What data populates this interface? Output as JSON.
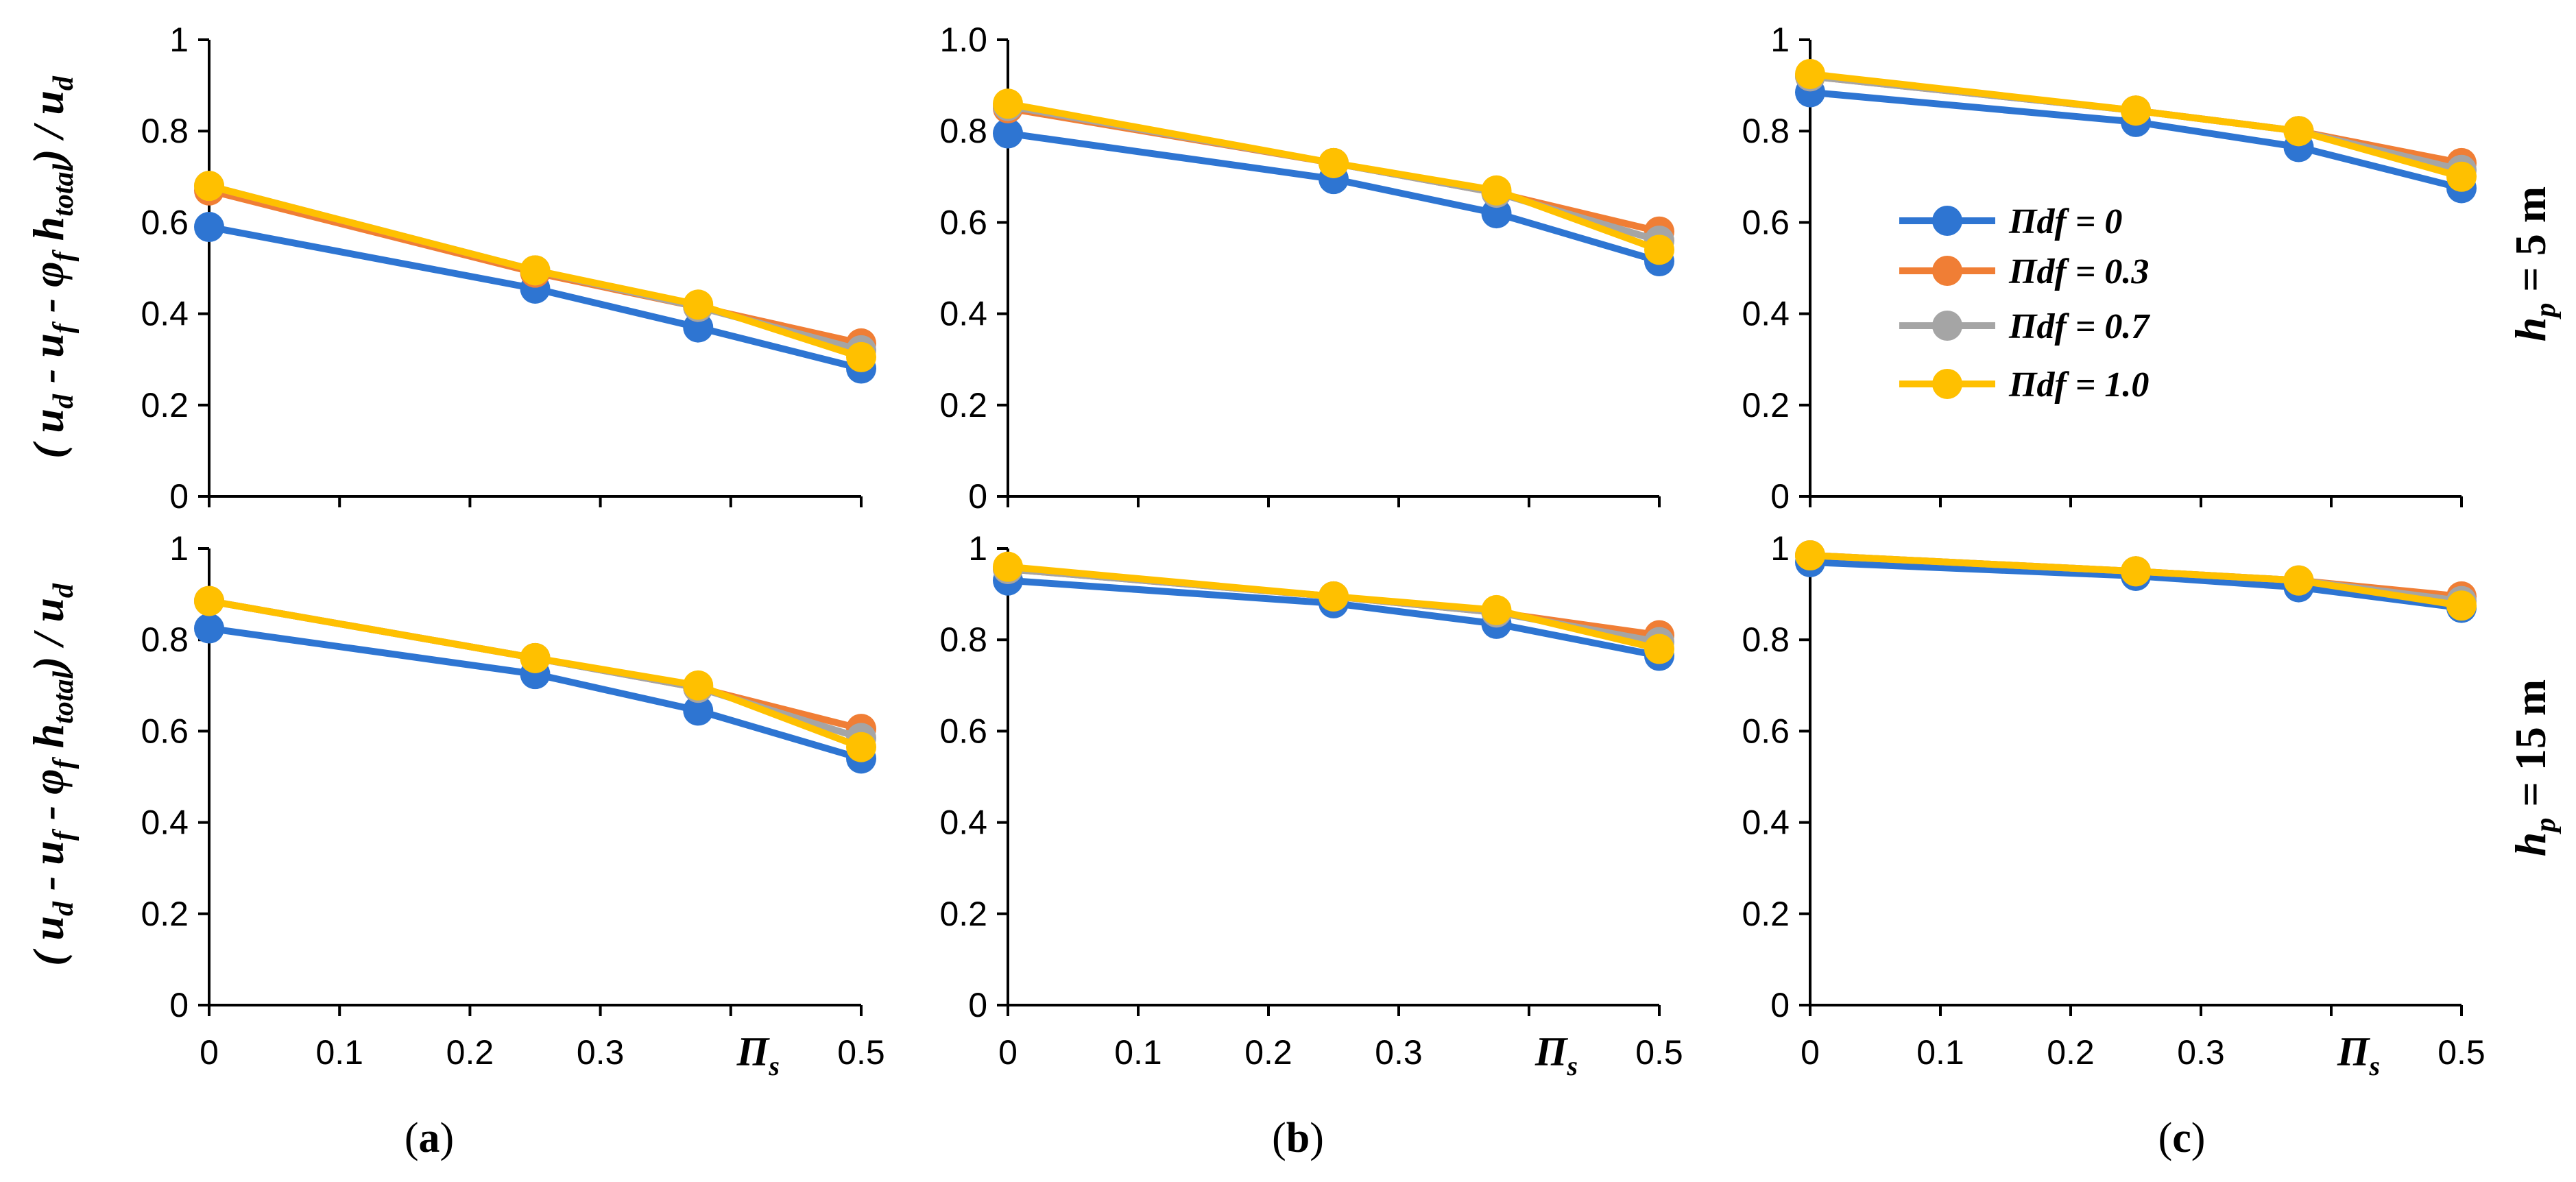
{
  "figure": {
    "ylabel": {
      "main": "( u",
      "d1": "d",
      "minus_uf": " - u",
      "f": "f",
      "minus_phi": " - φ",
      "phi_f": "f",
      "htotal": " h",
      "total": "total",
      "close": ") / u",
      "d2": "d"
    },
    "row_labels": [
      {
        "h": "h",
        "p": "p",
        "value": " = 5 m"
      },
      {
        "h": "h",
        "p": "p",
        "value": " = 15 m"
      }
    ],
    "panel_labels": [
      {
        "open": "(",
        "letter": "a",
        "close": ")"
      },
      {
        "open": "(",
        "letter": "b",
        "close": ")"
      },
      {
        "open": "(",
        "letter": "c",
        "close": ")"
      }
    ],
    "pi_s_label": {
      "pi": "Π",
      "s": "s"
    },
    "x_ticks": [
      "0",
      "0.1",
      "0.2",
      "0.3",
      "0.4",
      "0.5"
    ],
    "y_ticks": [
      "0",
      "0.2",
      "0.4",
      "0.6",
      "0.8",
      "1"
    ],
    "y_ticks_b_top": [
      "0",
      "0.2",
      "0.4",
      "0.6",
      "0.8",
      "1.0"
    ],
    "legend": [
      "Πdf = 0",
      "Πdf = 0.3",
      "Πdf = 0.7",
      "Πdf = 1.0"
    ]
  },
  "colors": {
    "series": [
      "#2E75D2",
      "#F07E35",
      "#A5A5A5",
      "#FFC000"
    ],
    "axis": "#000000"
  },
  "chart_data": [
    {
      "panel": "a",
      "row": "h_p = 5 m",
      "type": "line",
      "x": [
        0,
        0.25,
        0.375,
        0.5
      ],
      "xlim": [
        0,
        0.5
      ],
      "ylim": [
        0,
        1
      ],
      "series": [
        {
          "name": "Πdf = 0",
          "values": [
            0.59,
            0.455,
            0.37,
            0.28
          ]
        },
        {
          "name": "Πdf = 0.3",
          "values": [
            0.67,
            0.49,
            0.415,
            0.335
          ]
        },
        {
          "name": "Πdf = 0.7",
          "values": [
            0.68,
            0.495,
            0.415,
            0.32
          ]
        },
        {
          "name": "Πdf = 1.0",
          "values": [
            0.68,
            0.495,
            0.42,
            0.305
          ]
        }
      ]
    },
    {
      "panel": "b",
      "row": "h_p = 5 m",
      "type": "line",
      "x": [
        0,
        0.25,
        0.375,
        0.5
      ],
      "xlim": [
        0,
        0.5
      ],
      "ylim": [
        0,
        1
      ],
      "series": [
        {
          "name": "Πdf = 0",
          "values": [
            0.795,
            0.695,
            0.62,
            0.515
          ]
        },
        {
          "name": "Πdf = 0.3",
          "values": [
            0.85,
            0.73,
            0.665,
            0.58
          ]
        },
        {
          "name": "Πdf = 0.7",
          "values": [
            0.855,
            0.73,
            0.665,
            0.56
          ]
        },
        {
          "name": "Πdf = 1.0",
          "values": [
            0.86,
            0.73,
            0.67,
            0.54
          ]
        }
      ]
    },
    {
      "panel": "c",
      "row": "h_p = 5 m",
      "type": "line",
      "x": [
        0,
        0.25,
        0.375,
        0.5
      ],
      "xlim": [
        0,
        0.5
      ],
      "ylim": [
        0,
        1
      ],
      "series": [
        {
          "name": "Πdf = 0",
          "values": [
            0.885,
            0.82,
            0.765,
            0.675
          ]
        },
        {
          "name": "Πdf = 0.3",
          "values": [
            0.92,
            0.845,
            0.8,
            0.73
          ]
        },
        {
          "name": "Πdf = 0.7",
          "values": [
            0.92,
            0.845,
            0.8,
            0.715
          ]
        },
        {
          "name": "Πdf = 1.0",
          "values": [
            0.925,
            0.845,
            0.8,
            0.7
          ]
        }
      ]
    },
    {
      "panel": "a",
      "row": "h_p = 15 m",
      "type": "line",
      "x": [
        0,
        0.25,
        0.375,
        0.5
      ],
      "xlim": [
        0,
        0.5
      ],
      "ylim": [
        0,
        1
      ],
      "series": [
        {
          "name": "Πdf = 0",
          "values": [
            0.825,
            0.725,
            0.645,
            0.54
          ]
        },
        {
          "name": "Πdf = 0.3",
          "values": [
            0.885,
            0.76,
            0.695,
            0.605
          ]
        },
        {
          "name": "Πdf = 0.7",
          "values": [
            0.885,
            0.76,
            0.695,
            0.585
          ]
        },
        {
          "name": "Πdf = 1.0",
          "values": [
            0.885,
            0.76,
            0.7,
            0.565
          ]
        }
      ]
    },
    {
      "panel": "b",
      "row": "h_p = 15 m",
      "type": "line",
      "x": [
        0,
        0.25,
        0.375,
        0.5
      ],
      "xlim": [
        0,
        0.5
      ],
      "ylim": [
        0,
        1
      ],
      "series": [
        {
          "name": "Πdf = 0",
          "values": [
            0.93,
            0.88,
            0.835,
            0.765
          ]
        },
        {
          "name": "Πdf = 0.3",
          "values": [
            0.955,
            0.895,
            0.86,
            0.81
          ]
        },
        {
          "name": "Πdf = 0.7",
          "values": [
            0.955,
            0.895,
            0.86,
            0.795
          ]
        },
        {
          "name": "Πdf = 1.0",
          "values": [
            0.96,
            0.895,
            0.865,
            0.78
          ]
        }
      ]
    },
    {
      "panel": "c",
      "row": "h_p = 15 m",
      "type": "line",
      "x": [
        0,
        0.25,
        0.375,
        0.5
      ],
      "xlim": [
        0,
        0.5
      ],
      "ylim": [
        0,
        1
      ],
      "series": [
        {
          "name": "Πdf = 0",
          "values": [
            0.97,
            0.94,
            0.915,
            0.87
          ]
        },
        {
          "name": "Πdf = 0.3",
          "values": [
            0.985,
            0.95,
            0.93,
            0.895
          ]
        },
        {
          "name": "Πdf = 0.7",
          "values": [
            0.985,
            0.95,
            0.93,
            0.885
          ]
        },
        {
          "name": "Πdf = 1.0",
          "values": [
            0.985,
            0.95,
            0.93,
            0.875
          ]
        }
      ]
    }
  ]
}
